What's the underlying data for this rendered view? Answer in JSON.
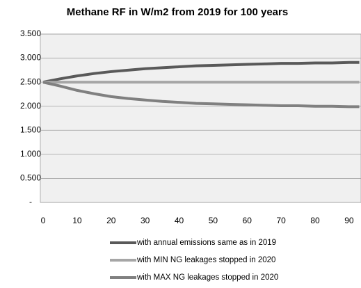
{
  "chart_data": {
    "type": "line",
    "title": "Methane  RF  in W/m2 from 2019 for 100 years",
    "x": [
      0,
      5,
      10,
      15,
      20,
      25,
      30,
      35,
      40,
      45,
      50,
      55,
      60,
      65,
      70,
      75,
      80,
      85,
      90,
      93
    ],
    "series": [
      {
        "name": "with annual emissions same as in 2019",
        "color": "#595959",
        "values": [
          2.5,
          2.57,
          2.63,
          2.68,
          2.72,
          2.75,
          2.78,
          2.8,
          2.82,
          2.84,
          2.85,
          2.86,
          2.87,
          2.88,
          2.89,
          2.89,
          2.9,
          2.9,
          2.91,
          2.91
        ]
      },
      {
        "name": "with MIN NG leakages stopped in 2020",
        "color": "#a6a6a6",
        "values": [
          2.5,
          2.5,
          2.5,
          2.5,
          2.5,
          2.5,
          2.5,
          2.5,
          2.5,
          2.5,
          2.5,
          2.5,
          2.5,
          2.5,
          2.5,
          2.5,
          2.5,
          2.5,
          2.5,
          2.5
        ]
      },
      {
        "name": "with MAX NG leakages stopped in 2020",
        "color": "#808080",
        "values": [
          2.5,
          2.42,
          2.33,
          2.26,
          2.2,
          2.16,
          2.13,
          2.1,
          2.08,
          2.06,
          2.05,
          2.04,
          2.03,
          2.02,
          2.01,
          2.01,
          2.0,
          2.0,
          1.99,
          1.99
        ]
      }
    ],
    "xlim": [
      0,
      93.5
    ],
    "xticks": [
      0,
      10,
      20,
      30,
      40,
      50,
      60,
      70,
      80,
      90
    ],
    "ylim": [
      0,
      3.5
    ],
    "yticks": [
      {
        "value": 0,
        "label": "-"
      },
      {
        "value": 0.5,
        "label": "0.500"
      },
      {
        "value": 1,
        "label": "1.000"
      },
      {
        "value": 1.5,
        "label": "1.500"
      },
      {
        "value": 2,
        "label": "2.000"
      },
      {
        "value": 2.5,
        "label": "2.500"
      },
      {
        "value": 3,
        "label": "3.000"
      },
      {
        "value": 3.5,
        "label": "3.500"
      }
    ],
    "grid": true,
    "legend": "bottom"
  }
}
